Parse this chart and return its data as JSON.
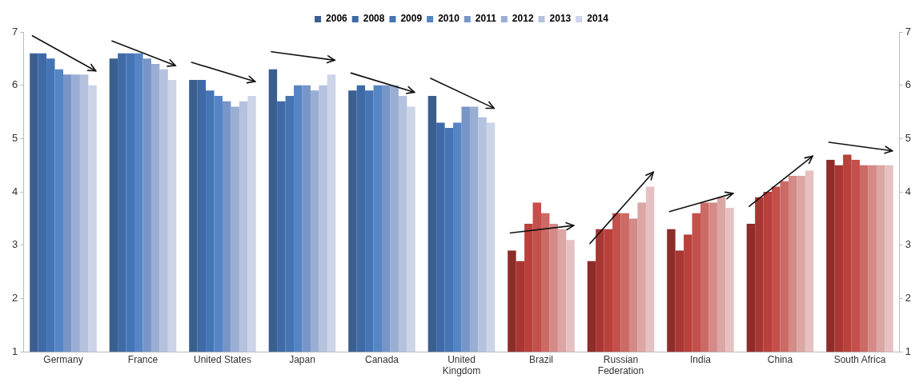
{
  "chart_data": {
    "type": "bar",
    "categories": [
      "Germany",
      "France",
      "United States",
      "Japan",
      "Canada",
      "United Kingdom",
      "Brazil",
      "Russian Federation",
      "India",
      "China",
      "South Africa"
    ],
    "series": [
      {
        "name": "2006",
        "color": "#3a5f8f",
        "colors": [
          "#3a5f8f",
          "#3a5f8f",
          "#3a5f8f",
          "#3a5f8f",
          "#3a5f8f",
          "#3a5f8f",
          "#8e2c2a",
          "#8e2c2a",
          "#8e2c2a",
          "#8e2c2a",
          "#8e2c2a"
        ],
        "values": [
          6.6,
          6.5,
          6.1,
          6.3,
          5.9,
          5.8,
          2.9,
          2.7,
          3.3,
          3.4,
          4.6
        ]
      },
      {
        "name": "2008",
        "color": "#3e6aa8",
        "colors": [
          "#3e6aa8",
          "#3e6aa8",
          "#3e6aa8",
          "#3e6aa8",
          "#3e6aa8",
          "#3e6aa8",
          "#a83632",
          "#a83632",
          "#a83632",
          "#a83632",
          "#a83632"
        ],
        "values": [
          6.6,
          6.6,
          6.1,
          5.7,
          6.0,
          5.3,
          2.7,
          3.3,
          2.9,
          3.9,
          4.5
        ]
      },
      {
        "name": "2009",
        "color": "#4575b5",
        "colors": [
          "#4575b5",
          "#4575b5",
          "#4575b5",
          "#4575b5",
          "#4575b5",
          "#4575b5",
          "#b9403b",
          "#b9403b",
          "#b9403b",
          "#b9403b",
          "#b9403b"
        ],
        "values": [
          6.5,
          6.6,
          5.9,
          5.8,
          5.9,
          5.2,
          3.4,
          3.3,
          3.2,
          4.0,
          4.7
        ]
      },
      {
        "name": "2010",
        "color": "#5585c5",
        "colors": [
          "#5585c5",
          "#5585c5",
          "#5585c5",
          "#5585c5",
          "#5585c5",
          "#5585c5",
          "#c4504b",
          "#c4504b",
          "#c4504b",
          "#c4504b",
          "#c4504b"
        ],
        "values": [
          6.3,
          6.6,
          5.8,
          6.0,
          6.0,
          5.3,
          3.8,
          3.6,
          3.6,
          4.1,
          4.6
        ]
      },
      {
        "name": "2011",
        "color": "#7895c8",
        "colors": [
          "#7895c8",
          "#7895c8",
          "#7895c8",
          "#7895c8",
          "#7895c8",
          "#7895c8",
          "#cc6a66",
          "#cc6a66",
          "#cc6a66",
          "#cc6a66",
          "#cc6a66"
        ],
        "values": [
          6.2,
          6.5,
          5.7,
          6.0,
          6.0,
          5.6,
          3.6,
          3.6,
          3.8,
          4.2,
          4.5
        ]
      },
      {
        "name": "2012",
        "color": "#9aaed3",
        "colors": [
          "#9aaed3",
          "#9aaed3",
          "#9aaed3",
          "#9aaed3",
          "#9aaed3",
          "#9aaed3",
          "#d48a87",
          "#d48a87",
          "#d48a87",
          "#d48a87",
          "#d48a87"
        ],
        "values": [
          6.2,
          6.4,
          5.6,
          5.9,
          6.0,
          5.6,
          3.4,
          3.5,
          3.8,
          4.3,
          4.5
        ]
      },
      {
        "name": "2013",
        "color": "#b4c2de",
        "colors": [
          "#b4c2de",
          "#b4c2de",
          "#b4c2de",
          "#b4c2de",
          "#b4c2de",
          "#b4c2de",
          "#dca6a4",
          "#dca6a4",
          "#dca6a4",
          "#dca6a4",
          "#dca6a4"
        ],
        "values": [
          6.2,
          6.3,
          5.7,
          6.0,
          5.8,
          5.4,
          3.3,
          3.8,
          3.9,
          4.3,
          4.5
        ]
      },
      {
        "name": "2014",
        "color": "#ccd4e8",
        "colors": [
          "#ccd4e8",
          "#ccd4e8",
          "#ccd4e8",
          "#ccd4e8",
          "#ccd4e8",
          "#ccd4e8",
          "#e5c2c1",
          "#e5c2c1",
          "#e5c2c1",
          "#e5c2c1",
          "#e5c2c1"
        ],
        "values": [
          6.0,
          6.1,
          5.8,
          6.2,
          5.6,
          5.3,
          3.1,
          4.1,
          3.7,
          4.4,
          4.5
        ]
      }
    ],
    "ylim": [
      1,
      7
    ],
    "yticks": [
      1,
      2,
      3,
      4,
      5,
      6,
      7
    ],
    "y2lim": [
      1,
      7
    ],
    "y2ticks": [
      1,
      2,
      3,
      4,
      5,
      6,
      7
    ],
    "legend": "top"
  }
}
